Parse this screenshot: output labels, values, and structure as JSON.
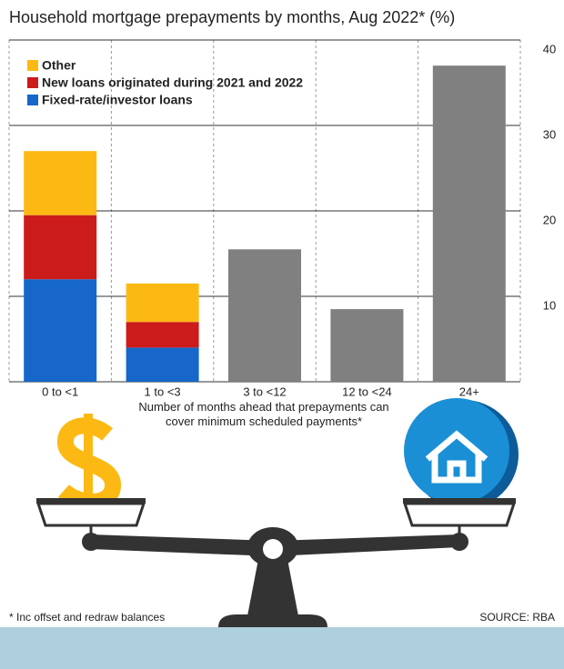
{
  "chart_data": {
    "type": "stacked_bar",
    "title": "Household mortgage prepayments by months, Aug 2022* (%)",
    "categories": [
      "0 to <1",
      "1 to <3",
      "3 to <12",
      "12 to <24",
      "24+"
    ],
    "series": [
      {
        "name": "Other",
        "color": "#fdb913",
        "values": [
          7.5,
          4.5,
          null,
          null,
          null
        ]
      },
      {
        "name": "New loans originated during 2021 and 2022",
        "color": "#cc1b1b",
        "values": [
          7.5,
          3,
          null,
          null,
          null
        ]
      },
      {
        "name": "Fixed-rate/investor loans",
        "color": "#1667c9",
        "values": [
          12,
          4,
          null,
          null,
          null
        ]
      },
      {
        "color": "#808080",
        "values": [
          null,
          null,
          15.5,
          8.5,
          37
        ]
      }
    ],
    "ylim": [
      0,
      40
    ],
    "yticks": [
      10,
      20,
      30,
      40
    ],
    "grid": true,
    "legend": "top-left",
    "xlabel": "Number of months ahead that prepayments can cover minimum scheduled payments*",
    "footnote": "* Inc offset and redraw balances",
    "source": "SOURCE: RBA"
  }
}
